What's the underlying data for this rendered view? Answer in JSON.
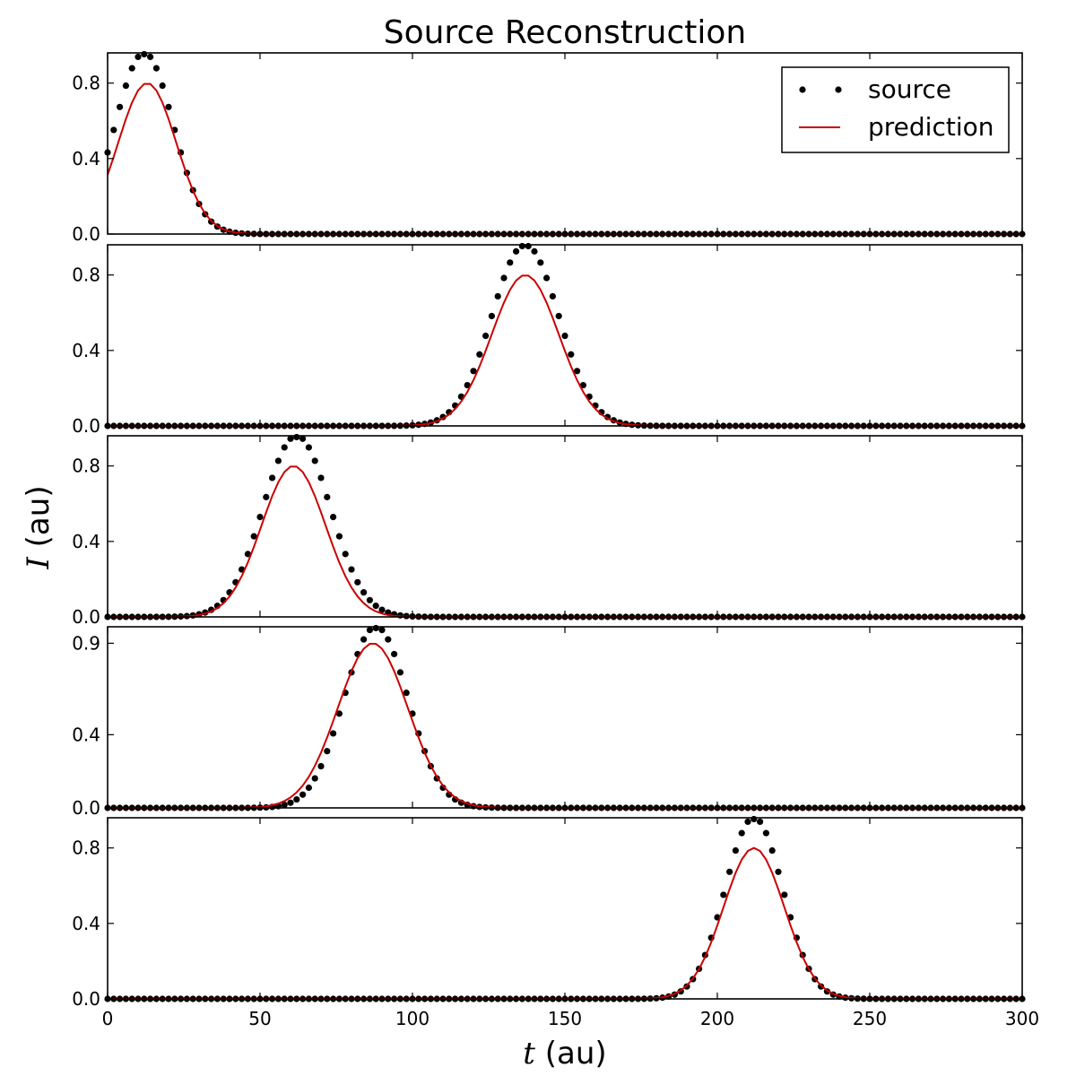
{
  "chart_data": {
    "type": "scatter",
    "title": "Source Reconstruction",
    "xlabel_symbol": "t",
    "xlabel_unit": " (au)",
    "ylabel_symbol": "I",
    "ylabel_unit": " (au)",
    "xlim": [
      0,
      300
    ],
    "xticks": [
      0,
      50,
      100,
      150,
      200,
      250,
      300
    ],
    "xtick_labels": [
      "0",
      "50",
      "100",
      "150",
      "200",
      "250",
      "300"
    ],
    "grid": false,
    "legend": {
      "placement": "top-right",
      "entries": [
        {
          "label": "source",
          "marker": "dots",
          "color": "#000000"
        },
        {
          "label": "prediction",
          "marker": "line",
          "color": "#cc0000"
        }
      ]
    },
    "x_sampling": {
      "start": 0,
      "stop": 300,
      "step": 2
    },
    "panels": [
      {
        "ylim": [
          0,
          0.96
        ],
        "yticks": [
          0.0,
          0.4,
          0.8
        ],
        "ytick_labels": [
          "0.0",
          "0.4",
          "0.8"
        ],
        "series": [
          {
            "name": "source",
            "style": "dots",
            "color": "#000000",
            "center": 12,
            "peak": 0.96,
            "width": 9.5
          },
          {
            "name": "prediction",
            "style": "line",
            "color": "#cc0000",
            "center": 13,
            "peak": 0.8,
            "width": 9.5
          }
        ]
      },
      {
        "ylim": [
          0,
          0.96
        ],
        "yticks": [
          0.0,
          0.4,
          0.8
        ],
        "ytick_labels": [
          "0.0",
          "0.4",
          "0.8"
        ],
        "series": [
          {
            "name": "source",
            "style": "dots",
            "color": "#000000",
            "center": 137,
            "peak": 0.96,
            "width": 11
          },
          {
            "name": "prediction",
            "style": "line",
            "color": "#cc0000",
            "center": 137,
            "peak": 0.8,
            "width": 11
          }
        ]
      },
      {
        "ylim": [
          0,
          0.96
        ],
        "yticks": [
          0.0,
          0.4,
          0.8
        ],
        "ytick_labels": [
          "0.0",
          "0.4",
          "0.8"
        ],
        "series": [
          {
            "name": "source",
            "style": "dots",
            "color": "#000000",
            "center": 62,
            "peak": 0.96,
            "width": 11
          },
          {
            "name": "prediction",
            "style": "line",
            "color": "#cc0000",
            "center": 61,
            "peak": 0.8,
            "width": 10.5
          }
        ]
      },
      {
        "ylim": [
          0,
          0.99
        ],
        "yticks": [
          0.0,
          0.4,
          0.9
        ],
        "ytick_labels": [
          "0.0",
          "0.4",
          "0.9"
        ],
        "series": [
          {
            "name": "source",
            "style": "dots",
            "color": "#000000",
            "center": 88,
            "peak": 0.99,
            "width": 10.5
          },
          {
            "name": "prediction",
            "style": "line",
            "color": "#cc0000",
            "center": 87,
            "peak": 0.9,
            "width": 11.5
          }
        ]
      },
      {
        "ylim": [
          0,
          0.96
        ],
        "yticks": [
          0.0,
          0.4,
          0.8
        ],
        "ytick_labels": [
          "0.0",
          "0.4",
          "0.8"
        ],
        "series": [
          {
            "name": "source",
            "style": "dots",
            "color": "#000000",
            "center": 212,
            "peak": 0.96,
            "width": 9.5
          },
          {
            "name": "prediction",
            "style": "line",
            "color": "#cc0000",
            "center": 212,
            "peak": 0.8,
            "width": 10
          }
        ]
      }
    ]
  }
}
